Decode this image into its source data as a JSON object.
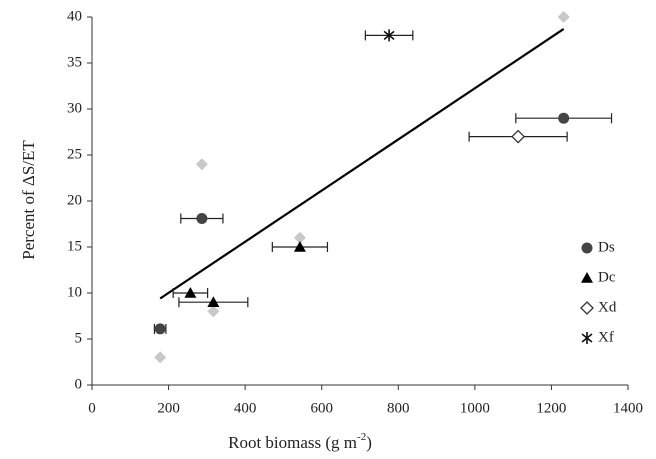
{
  "chart_data": {
    "type": "scatter",
    "xlabel": "Root biomass (g m",
    "xlabel_sup": "-2",
    "xlabel_end": ")",
    "ylabel": "Percent of ΔS/ET",
    "xlim": [
      0,
      1400
    ],
    "xticks": [
      0,
      200,
      400,
      600,
      800,
      1000,
      1200,
      1400
    ],
    "ylim": [
      0,
      40
    ],
    "yticks": [
      0,
      5,
      10,
      15,
      20,
      25,
      30,
      35,
      40
    ],
    "grid": false,
    "legend": "right",
    "series": [
      {
        "name": "Ds",
        "marker": "circle",
        "color": "#444444",
        "x": [
          178,
          287,
          1232
        ],
        "values": [
          6.1,
          18.1,
          29
        ],
        "xerr": [
          15,
          55,
          125
        ]
      },
      {
        "name": "Dc",
        "marker": "triangle",
        "color": "#000000",
        "x": [
          257,
          317,
          543
        ],
        "values": [
          10,
          9,
          15
        ],
        "xerr": [
          45,
          90,
          72
        ]
      },
      {
        "name": "Xd",
        "marker": "diamond-open",
        "color": "#333333",
        "x": [
          1113
        ],
        "values": [
          27
        ],
        "xerr": [
          128
        ]
      },
      {
        "name": "Xf",
        "marker": "asterisk",
        "color": "#111111",
        "x": [
          776
        ],
        "values": [
          38
        ],
        "xerr": [
          62
        ]
      },
      {
        "marker": "diamond",
        "color": "#c8c8c8",
        "x": [
          178,
          287,
          317,
          543,
          1232
        ],
        "values": [
          3,
          24,
          8,
          16,
          40
        ]
      }
    ],
    "trendline": {
      "color": "#000000",
      "x": [
        178,
        1232
      ],
      "values": [
        9.4,
        38.7
      ]
    }
  }
}
